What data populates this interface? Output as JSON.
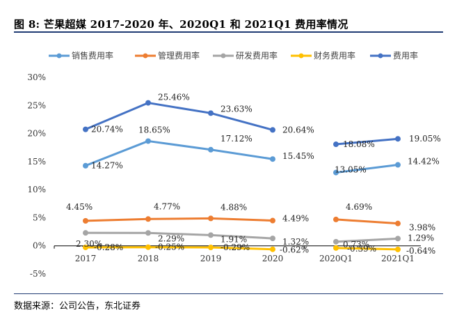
{
  "figure": {
    "title": "图 8: 芒果超媒 2017-2020 年、2020Q1 和 2021Q1 费用率情况",
    "source": "数据来源：公司公告，东北证券"
  },
  "chart_data": {
    "type": "line",
    "title": "芒果超媒 2017-2020 年、2020Q1 和 2021Q1 费用率情况",
    "xlabel": "",
    "ylabel": "",
    "ylim": [
      -0.05,
      0.3
    ],
    "yticks": [
      "-5%",
      "0%",
      "5%",
      "10%",
      "15%",
      "20%",
      "25%",
      "30%"
    ],
    "yticks_values": [
      -0.05,
      0,
      0.05,
      0.1,
      0.15,
      0.2,
      0.25,
      0.3
    ],
    "categories": [
      "2017",
      "2018",
      "2019",
      "2020",
      "2020Q1",
      "2021Q1"
    ],
    "legend_position": "top",
    "series": [
      {
        "name": "销售费用率",
        "color": "#5B9BD5",
        "values": [
          0.1427,
          0.1865,
          0.1712,
          0.1545,
          0.1305,
          0.1442
        ],
        "labels": [
          "14.27%",
          "18.65%",
          "17.12%",
          "15.45%",
          "13.05%",
          "14.42%"
        ]
      },
      {
        "name": "管理费用率",
        "color": "#ED7D31",
        "values": [
          0.0445,
          0.0477,
          0.0488,
          0.0449,
          0.0469,
          0.0398
        ],
        "labels": [
          "4.45%",
          "4.77%",
          "4.88%",
          "4.49%",
          "4.69%",
          "3.98%"
        ]
      },
      {
        "name": "研发费用率",
        "color": "#A5A5A5",
        "values": [
          0.023,
          0.0229,
          0.0191,
          0.0132,
          0.0073,
          0.0129
        ],
        "labels": [
          "2.30%",
          "2.29%",
          "1.91%",
          "1.32%",
          "0.73%",
          "1.29%"
        ]
      },
      {
        "name": "财务费用率",
        "color": "#FFC000",
        "values": [
          -0.0028,
          -0.0025,
          -0.0029,
          -0.0062,
          -0.0039,
          -0.0064
        ],
        "labels": [
          "-0.28%",
          "-0.25%",
          "-0.29%",
          "-0.62%",
          "-0.39%",
          "-0.64%"
        ]
      },
      {
        "name": "费用率",
        "color": "#4472C4",
        "values": [
          0.2074,
          0.2546,
          0.2363,
          0.2064,
          0.1808,
          0.1905
        ],
        "labels": [
          "20.74%",
          "25.46%",
          "23.63%",
          "20.64%",
          "18.08%",
          "19.05%"
        ]
      }
    ]
  }
}
